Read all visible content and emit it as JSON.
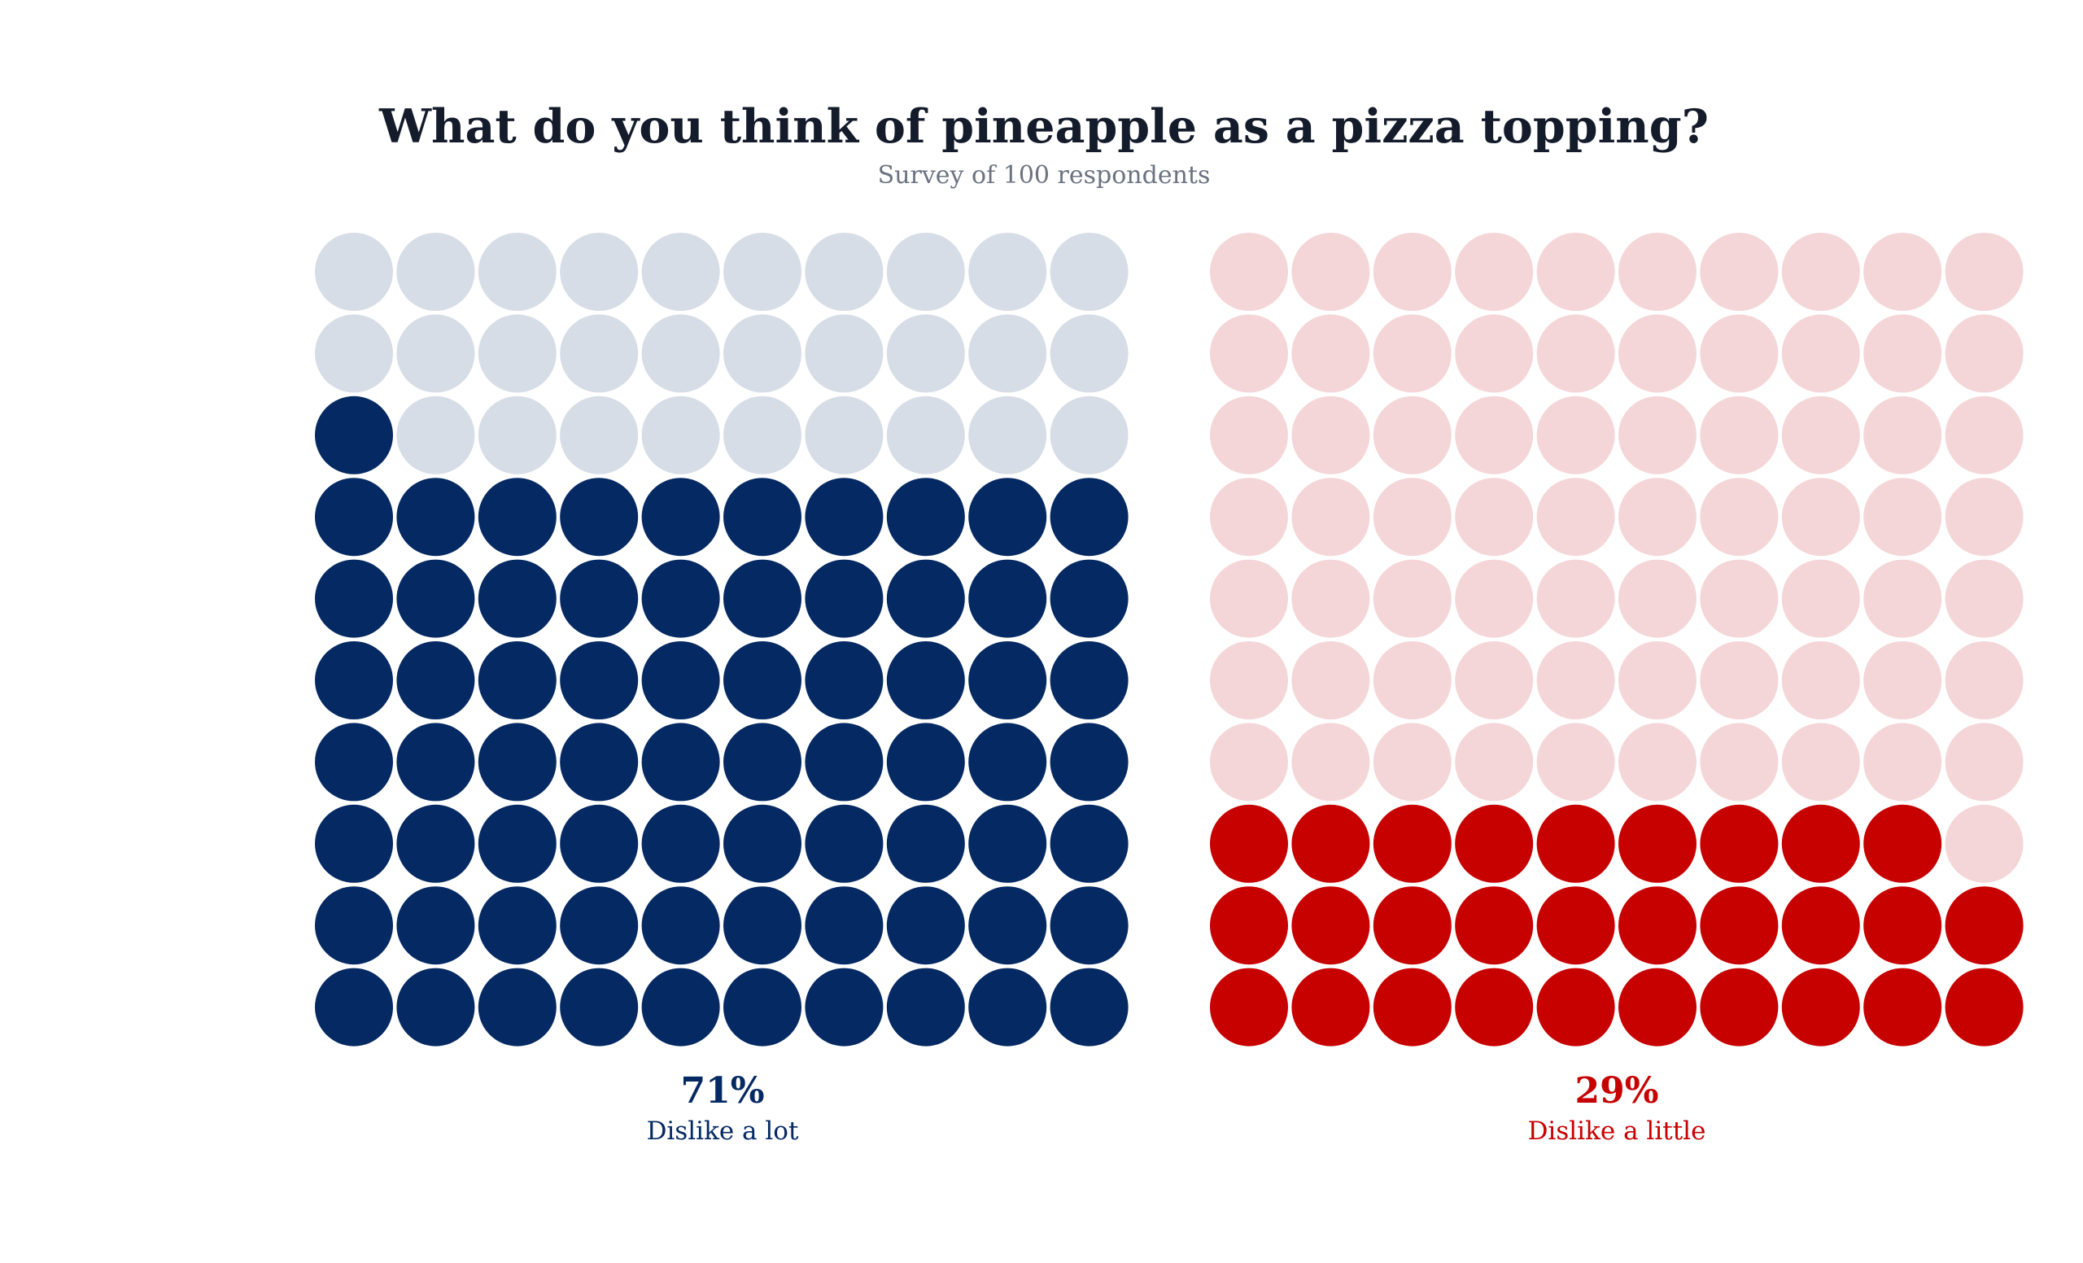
{
  "chart_data": {
    "type": "waffle",
    "title": "What do you think of pineapple as a pizza topping?",
    "subtitle": "Survey of 100 respondents",
    "grid": {
      "rows": 10,
      "cols": 10,
      "fill_order": "bottom-up, left-to-right"
    },
    "series": [
      {
        "name": "Dislike a lot",
        "value": 71,
        "label": "71%",
        "color": "#052962",
        "empty_color": "#d7dde6"
      },
      {
        "name": "Dislike a little",
        "value": 29,
        "label": "29%",
        "color": "#c70000",
        "empty_color": "#f5d6d8"
      }
    ]
  }
}
